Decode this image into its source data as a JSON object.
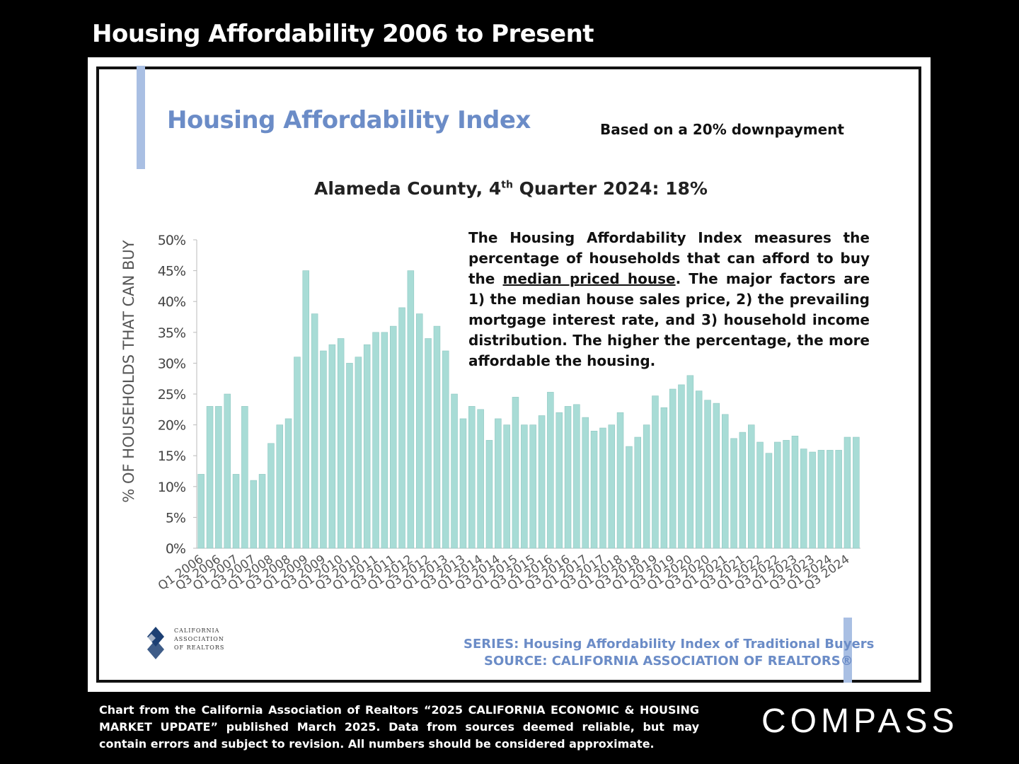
{
  "slide_title": "Housing Affordability 2006 to Present",
  "panel": {
    "hai_title": "Housing Affordability Index",
    "downpayment_note": "Based on a 20% downpayment",
    "county_prefix": "Alameda County, 4",
    "county_sup": "th",
    "county_suffix": " Quarter 2024: 18%",
    "description_1": "The Housing Affordability Index measures the percentage of households that can afford to buy the ",
    "description_link": "median priced house",
    "description_2": ". The major factors are 1) the median house sales price, 2) the prevailing mortgage interest rate, and 3) household income distribution. The higher the percentage, the more affordable the housing.",
    "logo_text": [
      "CALIFORNIA",
      "ASSOCIATION",
      "OF REALTORS"
    ],
    "series_line": "SERIES: Housing Affordability Index of Traditional Buyers",
    "source_line": "SOURCE:  CALIFORNIA ASSOCIATION OF REALTORS®"
  },
  "footnote": "Chart from the California Association of Realtors “2025 CALIFORNIA ECONOMIC & HOUSING MARKET UPDATE” published March 2025. Data from sources deemed reliable, but may contain errors and subject to revision. All numbers should be considered approximate.",
  "brand": "COMPASS",
  "colors": {
    "bar_fill": "#a8dcd6",
    "bar_stroke": "#8fc7c1",
    "accent": "#6b8cc7"
  },
  "chart_data": {
    "type": "bar",
    "ylabel": "% OF HOUSEHOLDS THAT CAN BUY",
    "ylim": [
      0,
      50
    ],
    "yticks": [
      "0%",
      "5%",
      "10%",
      "15%",
      "20%",
      "25%",
      "30%",
      "35%",
      "40%",
      "45%",
      "50%"
    ],
    "grid": false,
    "categories": [
      "Q1 2006",
      "Q2 2006",
      "Q3 2006",
      "Q4 2006",
      "Q1 2007",
      "Q2 2007",
      "Q3 2007",
      "Q4 2007",
      "Q1 2008",
      "Q2 2008",
      "Q3 2008",
      "Q4 2008",
      "Q1 2009",
      "Q2 2009",
      "Q3 2009",
      "Q4 2009",
      "Q1 2010",
      "Q2 2010",
      "Q3 2010",
      "Q4 2010",
      "Q1 2011",
      "Q2 2011",
      "Q3 2011",
      "Q4 2011",
      "Q1 2012",
      "Q2 2012",
      "Q3 2012",
      "Q4 2012",
      "Q1 2013",
      "Q2 2013",
      "Q3 2013",
      "Q4 2013",
      "Q1 2014",
      "Q2 2014",
      "Q3 2014",
      "Q4 2014",
      "Q1 2015",
      "Q2 2015",
      "Q3 2015",
      "Q4 2015",
      "Q1 2016",
      "Q2 2016",
      "Q3 2016",
      "Q4 2016",
      "Q1 2017",
      "Q2 2017",
      "Q3 2017",
      "Q4 2017",
      "Q1 2018",
      "Q2 2018",
      "Q3 2018",
      "Q4 2018",
      "Q1 2019",
      "Q2 2019",
      "Q3 2019",
      "Q4 2019",
      "Q1 2020",
      "Q2 2020",
      "Q3 2020",
      "Q4 2020",
      "Q1 2021",
      "Q2 2021",
      "Q3 2021",
      "Q4 2021",
      "Q1 2022",
      "Q2 2022",
      "Q3 2022",
      "Q4 2022",
      "Q1 2023",
      "Q2 2023",
      "Q3 2023",
      "Q4 2023",
      "Q1 2024",
      "Q2 2024",
      "Q3 2024",
      "Q4 2024"
    ],
    "tick_labels": [
      "Q1 2006",
      "Q3 2006",
      "Q1 2007",
      "Q3 2007",
      "Q1 2008",
      "Q3 2008",
      "Q1 2009",
      "Q3 2009",
      "Q1 2010",
      "Q3 2010",
      "Q1 2011",
      "Q3 2011",
      "Q1 2012",
      "Q3 2012",
      "Q1 2013",
      "Q3 2013",
      "Q1 2014",
      "Q3 2014",
      "Q1 2015",
      "Q3 2015",
      "Q1 2016",
      "Q3 2016",
      "Q1 2017",
      "Q3 2017",
      "Q1 2018",
      "Q3 2018",
      "Q1 2019",
      "Q3 2019",
      "Q1 2020",
      "Q3 2020",
      "Q1 2021",
      "Q3 2021",
      "Q1 2022",
      "Q3 2022",
      "Q1 2023",
      "Q3 2023",
      "Q1 2024",
      "Q3 2024"
    ],
    "values": [
      12,
      23,
      23,
      25,
      12,
      23,
      11,
      12,
      17,
      20,
      21,
      31,
      45,
      38,
      32,
      33,
      34,
      30,
      31,
      33,
      35,
      35,
      36,
      39,
      45,
      38,
      34,
      36,
      32,
      25,
      21,
      23,
      22.5,
      17.5,
      21,
      20,
      24.5,
      20,
      20,
      21.5,
      25.3,
      22,
      23,
      23.3,
      21.2,
      19,
      19.5,
      20,
      22,
      16.5,
      18,
      20,
      24.7,
      22.8,
      25.8,
      26.5,
      28,
      25.5,
      24,
      23.5,
      21.7,
      17.8,
      18.8,
      20,
      17.2,
      15.4,
      17.2,
      17.5,
      18.2,
      16.1,
      15.6,
      15.9,
      15.9,
      15.9,
      18,
      18
    ]
  }
}
